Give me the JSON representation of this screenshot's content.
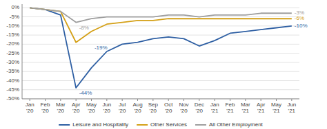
{
  "chart_data": {
    "type": "line",
    "categories": [
      "Jan\n'20",
      "Feb\n'20",
      "Mar\n'20",
      "Apr\n'20",
      "May\n'20",
      "Jun\n'20",
      "Jul\n'20",
      "Aug\n'20",
      "Sep\n'20",
      "Oct\n'20",
      "Nov\n'20",
      "Dec\n'20",
      "Jan\n'21",
      "Feb\n'21",
      "Mar\n'21",
      "Apr\n'21",
      "May\n'21",
      "Jun\n'21"
    ],
    "series": [
      {
        "name": "Leisure and Hospitality",
        "color": "#2e5fa3",
        "values": [
          0,
          -1,
          -4,
          -44,
          -33,
          -24,
          -20,
          -19,
          -17,
          -16,
          -17,
          -21,
          -18,
          -14,
          -13,
          -12,
          -11,
          -10
        ]
      },
      {
        "name": "Other Services",
        "color": "#d4a017",
        "values": [
          0,
          -1,
          -2,
          -19,
          -13,
          -9,
          -8,
          -7,
          -7,
          -6,
          -6,
          -6,
          -6,
          -6,
          -6,
          -6,
          -6,
          -6
        ]
      },
      {
        "name": "All Other Employment",
        "color": "#9e9e9e",
        "values": [
          0,
          -1,
          -2,
          -8,
          -6,
          -5,
          -5,
          -5,
          -5,
          -4,
          -4,
          -5,
          -4,
          -4,
          -4,
          -3,
          -3,
          -3
        ]
      }
    ],
    "ylim": [
      -50,
      2
    ],
    "yticks": [
      {
        "value": 0,
        "label": "0%"
      },
      {
        "value": -5,
        "label": "-5%"
      },
      {
        "value": -10,
        "label": "-10%"
      },
      {
        "value": -15,
        "label": "-15%"
      },
      {
        "value": -20,
        "label": "-20%"
      },
      {
        "value": -25,
        "label": "-25%"
      },
      {
        "value": -30,
        "label": "-30%"
      },
      {
        "value": -35,
        "label": "-35%"
      },
      {
        "value": -40,
        "label": "-40%"
      },
      {
        "value": -45,
        "label": "-45%"
      },
      {
        "value": -50,
        "label": "-50%"
      }
    ],
    "annotations": [
      {
        "text": "-44%",
        "x": "Apr\n'20",
        "y": -44,
        "color": "#2e5fa3"
      },
      {
        "text": "-19%",
        "x": "May\n'20",
        "y": -19,
        "color": "#2e5fa3"
      },
      {
        "text": "-8%",
        "x": "Apr\n'20",
        "y": -8,
        "color": "#9e9e9e"
      },
      {
        "text": "-10%",
        "x": "Jun\n'21",
        "y": -10,
        "color": "#2e5fa3"
      },
      {
        "text": "-6%",
        "x": "Jun\n'21",
        "y": -6,
        "color": "#d4a017"
      },
      {
        "text": "-3%",
        "x": "Jun\n'21",
        "y": -3,
        "color": "#9e9e9e"
      }
    ],
    "grid": true,
    "legend": "bottom"
  }
}
